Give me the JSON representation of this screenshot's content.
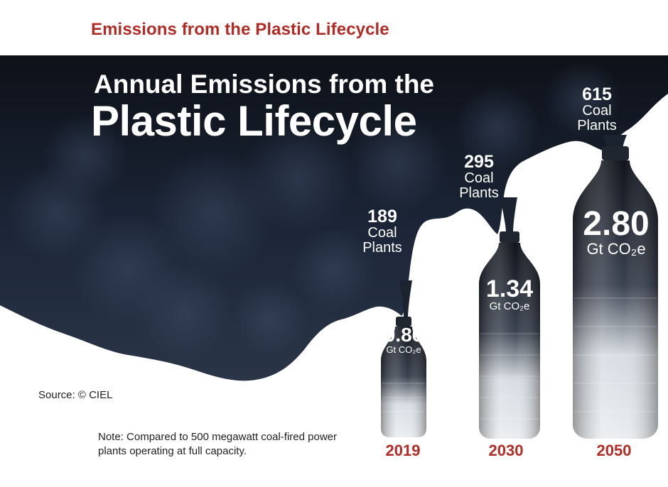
{
  "header": {
    "title": "Emissions from the Plastic Lifecycle"
  },
  "chart_title": {
    "line1": "Annual Emissions from the",
    "line2": "Plastic Lifecycle"
  },
  "source": "Source: © CIEL",
  "note": "Note: Compared to 500 megawatt coal-fired power plants operating at full capacity.",
  "colors": {
    "accent": "#b32b25",
    "smoke": "#1a2230",
    "text_on_dark": "#ffffff"
  },
  "chart_data": {
    "type": "bar",
    "categories": [
      "2019",
      "2030",
      "2050"
    ],
    "series": [
      {
        "name": "Gt CO₂e",
        "values": [
          0.86,
          1.34,
          2.8
        ]
      },
      {
        "name": "Coal Plants",
        "values": [
          189,
          295,
          615
        ]
      }
    ],
    "value_labels": [
      "0.86",
      "1.34",
      "2.80"
    ],
    "unit_label": "Gt CO₂e",
    "plants_labels": [
      "189",
      "295",
      "615"
    ],
    "plants_word1": "Coal",
    "plants_word2": "Plants",
    "title": "Annual Emissions from the Plastic Lifecycle",
    "xlabel": "",
    "ylabel": "",
    "ylim": [
      0,
      2.8
    ],
    "grid": false
  }
}
